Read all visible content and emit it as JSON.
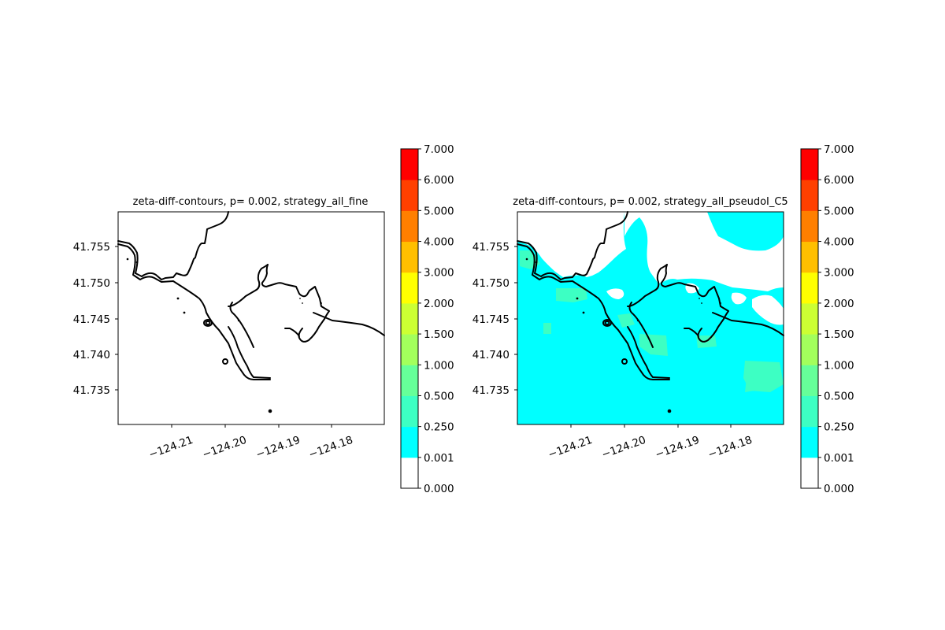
{
  "colorbar": {
    "levels": [
      "0.000",
      "0.001",
      "0.250",
      "0.500",
      "1.000",
      "1.500",
      "2.000",
      "3.000",
      "4.000",
      "5.000",
      "6.000",
      "7.000"
    ],
    "colors": [
      "#ffffff",
      "#00ffff",
      "#3dffc3",
      "#66ff99",
      "#a3ff5c",
      "#ccff33",
      "#ffff00",
      "#ffbf00",
      "#ff7f00",
      "#ff4000",
      "#ff0000"
    ]
  },
  "chart_data": [
    {
      "type": "heatmap",
      "title": "zeta-diff-contours, p= 0.002, strategy_all_fine",
      "xlabel": "",
      "ylabel": "",
      "x_ticks": [
        "−124.21",
        "−124.20",
        "−124.19",
        "−124.18"
      ],
      "y_ticks": [
        "41.735",
        "41.740",
        "41.745",
        "41.750",
        "41.755"
      ],
      "xlim": [
        -124.2195,
        -124.1695
      ],
      "ylim": [
        41.7305,
        41.7595
      ],
      "field": "no visible difference (all white, 0.000–0.001)",
      "overlay": "coastline contour (black)"
    },
    {
      "type": "heatmap",
      "title": "zeta-diff-contours, p= 0.002, strategy_all_pseudoI_C5",
      "xlabel": "",
      "ylabel": "",
      "x_ticks": [
        "−124.21",
        "−124.20",
        "−124.19",
        "−124.18"
      ],
      "y_ticks": [
        "41.735",
        "41.740",
        "41.745",
        "41.750",
        "41.755"
      ],
      "xlim": [
        -124.2195,
        -124.1695
      ],
      "ylim": [
        41.7305,
        41.7595
      ],
      "field": "mostly 0.001–0.250 (cyan) over water, with scattered 0.250–0.500 patches; land white",
      "overlay": "coastline contour (black)"
    }
  ]
}
